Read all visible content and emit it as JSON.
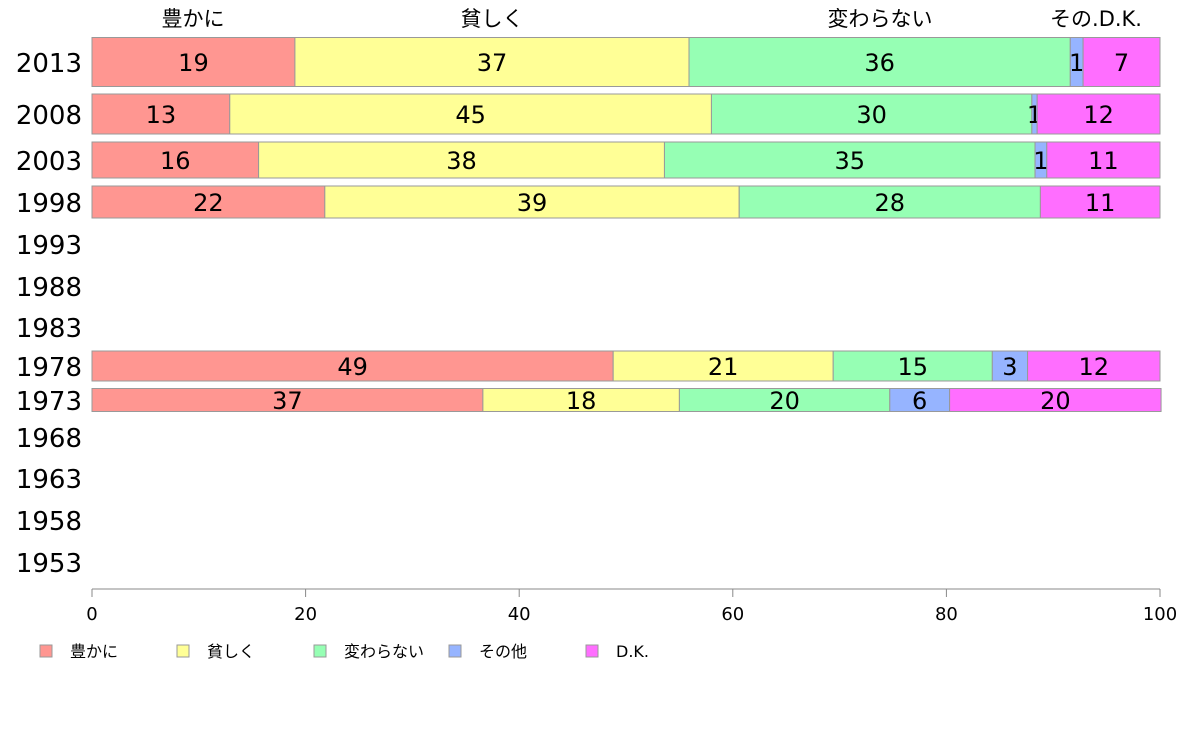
{
  "chart_data": {
    "type": "bar",
    "orientation": "horizontal-stacked",
    "title": "",
    "xlabel": "",
    "ylabel": "",
    "xlim": [
      0,
      100
    ],
    "x_ticks": [
      "0",
      "20",
      "40",
      "60",
      "80",
      "100"
    ],
    "top_labels": [
      "豊かに",
      "貧しく",
      "変わらない",
      "その.D.K."
    ],
    "categories": [
      "2013",
      "2008",
      "2003",
      "1998",
      "1993",
      "1988",
      "1983",
      "1978",
      "1973",
      "1968",
      "1963",
      "1958",
      "1953"
    ],
    "series": [
      {
        "name": "豊かに",
        "color": "#ff9691",
        "values": [
          19.0,
          12.9,
          15.6,
          21.8,
          null,
          null,
          null,
          48.8,
          36.6,
          null,
          null,
          null,
          null
        ]
      },
      {
        "name": "貧しく",
        "color": "#ffff96",
        "values": [
          36.9,
          45.1,
          38.0,
          38.8,
          null,
          null,
          null,
          20.6,
          18.4,
          null,
          null,
          null,
          null
        ]
      },
      {
        "name": "変わらない",
        "color": "#96ffb4",
        "values": [
          35.7,
          30.0,
          34.7,
          28.2,
          null,
          null,
          null,
          14.9,
          19.7,
          null,
          null,
          null,
          null
        ]
      },
      {
        "name": "その他",
        "color": "#96b4ff",
        "values": [
          1.2,
          0.5,
          1.1,
          0,
          null,
          null,
          null,
          3.3,
          5.6,
          null,
          null,
          null,
          null
        ]
      },
      {
        "name": "D.K.",
        "color": "#ff6eff",
        "values": [
          7.2,
          11.5,
          10.6,
          11.2,
          null,
          null,
          null,
          12.4,
          19.8,
          null,
          null,
          null,
          null
        ]
      }
    ],
    "legend_position": "bottom-left",
    "grid": false
  }
}
